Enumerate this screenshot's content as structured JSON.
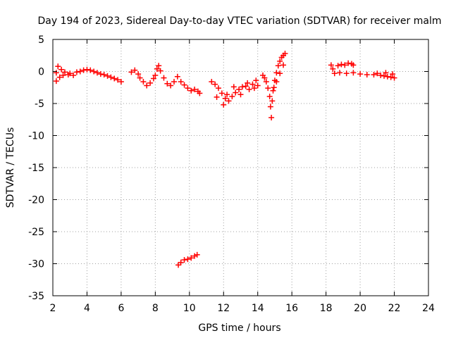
{
  "chart_data": {
    "type": "scatter",
    "title": "Day 194 of 2023, Sidereal Day-to-day VTEC variation (SDTVAR) for receiver malm",
    "xlabel": "GPS time / hours",
    "ylabel": "SDTVAR / TECUs",
    "xlim": [
      2,
      24
    ],
    "ylim": [
      -35,
      5
    ],
    "xticks": [
      2,
      4,
      6,
      8,
      10,
      12,
      14,
      16,
      18,
      20,
      22,
      24
    ],
    "yticks": [
      5,
      0,
      -5,
      -10,
      -15,
      -20,
      -25,
      -30,
      -35
    ],
    "grid": true,
    "marker": "+",
    "series": [
      {
        "name": "SDTVAR",
        "color": "#ff0000",
        "points": [
          [
            2.2,
            -0.2
          ],
          [
            2.2,
            -1.5
          ],
          [
            2.3,
            0.8
          ],
          [
            2.4,
            -0.9
          ],
          [
            2.5,
            0.3
          ],
          [
            2.6,
            -0.6
          ],
          [
            2.7,
            -0.1
          ],
          [
            2.9,
            -0.5
          ],
          [
            3.0,
            -0.3
          ],
          [
            3.2,
            -0.6
          ],
          [
            3.4,
            -0.1
          ],
          [
            3.6,
            0.0
          ],
          [
            3.8,
            0.2
          ],
          [
            4.0,
            0.3
          ],
          [
            4.2,
            0.2
          ],
          [
            4.4,
            0.0
          ],
          [
            4.6,
            -0.2
          ],
          [
            4.8,
            -0.4
          ],
          [
            5.0,
            -0.5
          ],
          [
            5.2,
            -0.7
          ],
          [
            5.4,
            -0.9
          ],
          [
            5.6,
            -1.1
          ],
          [
            5.8,
            -1.3
          ],
          [
            6.0,
            -1.6
          ],
          [
            6.6,
            -0.1
          ],
          [
            6.8,
            0.2
          ],
          [
            7.0,
            -0.4
          ],
          [
            7.1,
            -1.0
          ],
          [
            7.3,
            -1.6
          ],
          [
            7.5,
            -2.2
          ],
          [
            7.7,
            -1.8
          ],
          [
            7.9,
            -1.1
          ],
          [
            8.0,
            -0.6
          ],
          [
            8.1,
            0.4
          ],
          [
            8.2,
            0.9
          ],
          [
            8.3,
            0.1
          ],
          [
            8.5,
            -1.0
          ],
          [
            8.7,
            -1.9
          ],
          [
            8.9,
            -2.2
          ],
          [
            9.1,
            -1.6
          ],
          [
            9.3,
            -0.8
          ],
          [
            9.5,
            -1.6
          ],
          [
            9.7,
            -2.1
          ],
          [
            9.9,
            -2.6
          ],
          [
            10.1,
            -3.0
          ],
          [
            10.3,
            -2.8
          ],
          [
            10.5,
            -3.1
          ],
          [
            10.6,
            -3.4
          ],
          [
            9.35,
            -30.2
          ],
          [
            9.5,
            -29.8
          ],
          [
            9.7,
            -29.4
          ],
          [
            9.9,
            -29.3
          ],
          [
            10.1,
            -29.1
          ],
          [
            10.3,
            -28.8
          ],
          [
            10.45,
            -28.6
          ],
          [
            11.3,
            -1.6
          ],
          [
            11.5,
            -2.0
          ],
          [
            11.7,
            -2.6
          ],
          [
            11.9,
            -3.4
          ],
          [
            12.1,
            -4.2
          ],
          [
            12.3,
            -4.6
          ],
          [
            12.5,
            -3.9
          ],
          [
            12.7,
            -3.3
          ],
          [
            12.9,
            -2.8
          ],
          [
            13.1,
            -2.4
          ],
          [
            13.3,
            -2.3
          ],
          [
            13.5,
            -2.8
          ],
          [
            13.7,
            -2.0
          ],
          [
            13.9,
            -1.4
          ],
          [
            14.0,
            -2.2
          ],
          [
            11.6,
            -4.0
          ],
          [
            12.0,
            -5.2
          ],
          [
            12.2,
            -3.6
          ],
          [
            12.6,
            -2.4
          ],
          [
            13.0,
            -3.6
          ],
          [
            13.4,
            -1.8
          ],
          [
            13.8,
            -2.6
          ],
          [
            14.3,
            -0.6
          ],
          [
            14.4,
            -1.0
          ],
          [
            14.5,
            -1.6
          ],
          [
            14.6,
            -2.6
          ],
          [
            14.7,
            -3.9
          ],
          [
            14.75,
            -5.5
          ],
          [
            14.8,
            -7.2
          ],
          [
            14.85,
            -4.6
          ],
          [
            14.9,
            -3.0
          ],
          [
            15.0,
            -1.4
          ],
          [
            15.1,
            -0.2
          ],
          [
            15.2,
            0.9
          ],
          [
            15.3,
            1.6
          ],
          [
            15.4,
            2.2
          ],
          [
            15.5,
            2.5
          ],
          [
            15.6,
            2.8
          ],
          [
            15.5,
            1.0
          ],
          [
            15.3,
            -0.3
          ],
          [
            15.1,
            -1.6
          ],
          [
            14.95,
            -2.5
          ],
          [
            18.3,
            1.0
          ],
          [
            18.4,
            0.4
          ],
          [
            18.5,
            -0.3
          ],
          [
            18.7,
            0.9
          ],
          [
            18.9,
            1.1
          ],
          [
            19.1,
            1.0
          ],
          [
            19.3,
            1.3
          ],
          [
            19.5,
            1.2
          ],
          [
            19.6,
            1.0
          ],
          [
            18.8,
            -0.2
          ],
          [
            19.2,
            -0.3
          ],
          [
            19.6,
            -0.2
          ],
          [
            20.0,
            -0.4
          ],
          [
            20.4,
            -0.5
          ],
          [
            20.8,
            -0.5
          ],
          [
            21.0,
            -0.3
          ],
          [
            21.2,
            -0.6
          ],
          [
            21.4,
            -0.7
          ],
          [
            21.6,
            -0.8
          ],
          [
            21.8,
            -0.9
          ],
          [
            22.0,
            -1.0
          ],
          [
            21.9,
            -0.4
          ],
          [
            21.5,
            -0.2
          ]
        ]
      }
    ]
  }
}
